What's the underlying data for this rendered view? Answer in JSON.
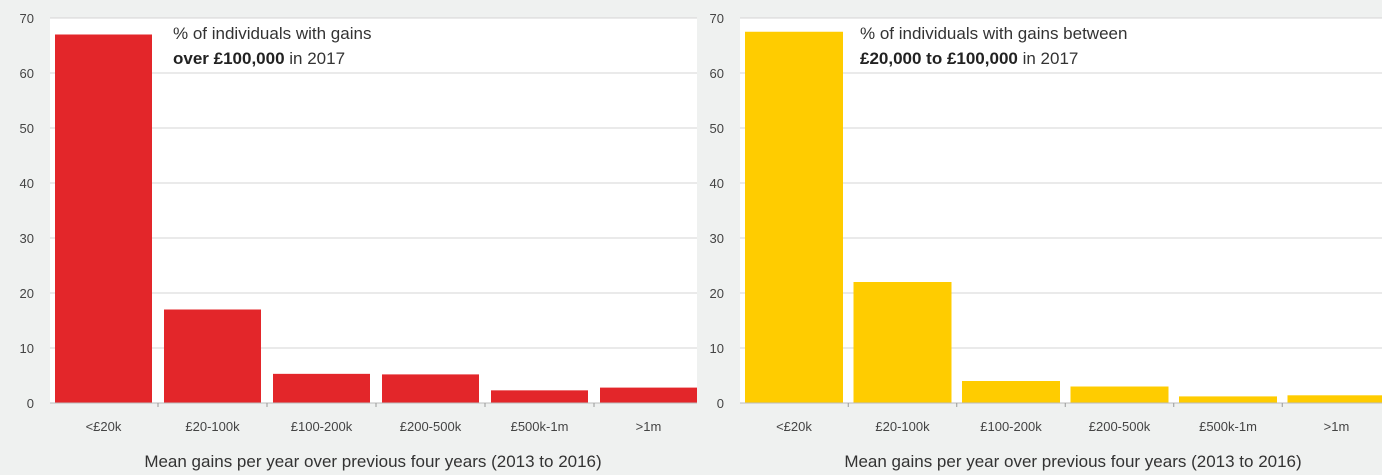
{
  "chart_data": [
    {
      "type": "bar",
      "categories": [
        "<£20k",
        "£20-100k",
        "£100-200k",
        "£200-500k",
        "£500k-1m",
        ">1m"
      ],
      "values": [
        67,
        17,
        5.3,
        5.2,
        2.3,
        2.8
      ],
      "ylim": [
        0,
        70
      ],
      "yticks": [
        "0",
        "10",
        "20",
        "30",
        "40",
        "50",
        "60",
        "70"
      ],
      "xlabel": "Mean gains per year over previous four years (2013 to 2016)",
      "annotation": {
        "line1": "% of individuals with gains",
        "line2_bold": "over £100,000",
        "line2_rest": " in 2017"
      },
      "bar_color": "#e3262a",
      "grid": true
    },
    {
      "type": "bar",
      "categories": [
        "<£20k",
        "£20-100k",
        "£100-200k",
        "£200-500k",
        "£500k-1m",
        ">1m"
      ],
      "values": [
        67.5,
        22,
        4,
        3,
        1.2,
        1.4
      ],
      "ylim": [
        0,
        70
      ],
      "yticks": [
        "0",
        "10",
        "20",
        "30",
        "40",
        "50",
        "60",
        "70"
      ],
      "xlabel": "Mean gains per year over previous four years (2013 to 2016)",
      "annotation": {
        "line1": "% of individuals with gains between",
        "line2_bold": "£20,000 to £100,000",
        "line2_rest": " in 2017"
      },
      "bar_color": "#ffcc00",
      "grid": true
    }
  ]
}
